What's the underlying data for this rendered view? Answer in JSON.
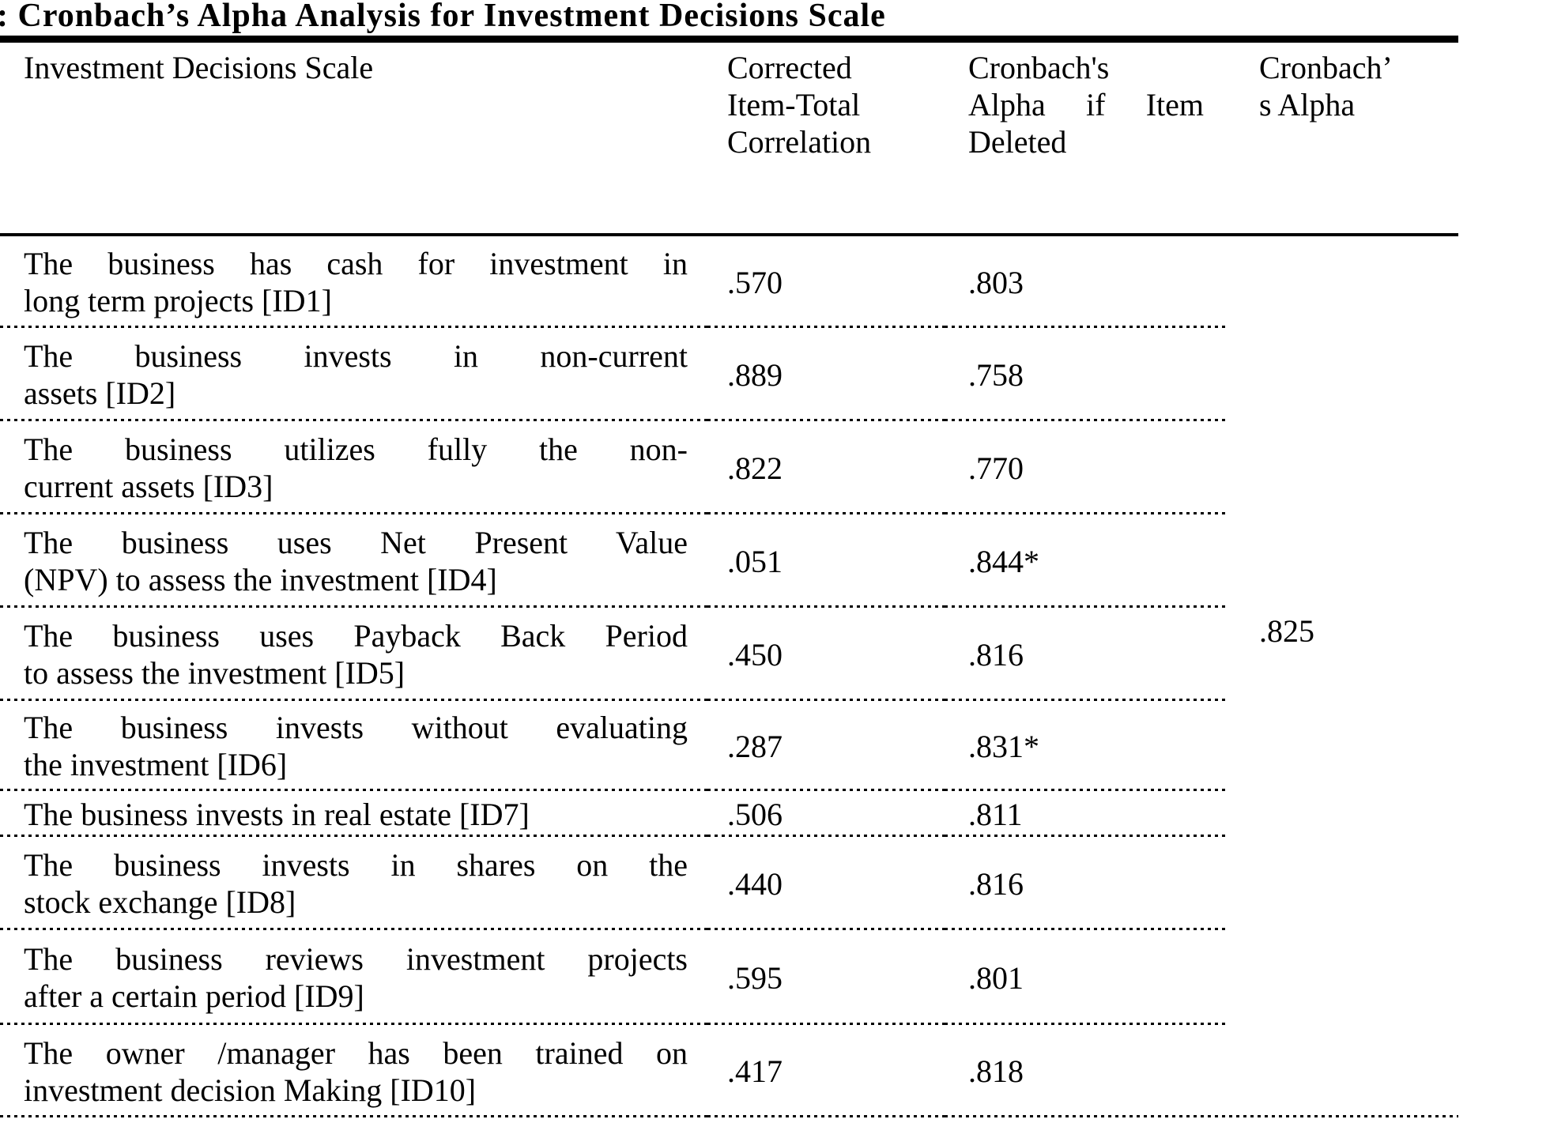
{
  "title": ": Cronbach’s Alpha Analysis for Investment Decisions Scale",
  "colors": {
    "text": "#000000",
    "background": "#ffffff",
    "rule": "#000000"
  },
  "table": {
    "headers": {
      "scale": "Investment Decisions Scale",
      "citc_lines": [
        "Corrected",
        "Item-Total",
        "Correlation"
      ],
      "aiid_lines": [
        "Cronbach's",
        "Alpha if Item",
        "Deleted"
      ],
      "alpha_lines": [
        "Cronbach’",
        "s Alpha"
      ]
    },
    "rows": [
      {
        "scale_lines": [
          "The business has cash for investment in",
          "long term projects [ID1]"
        ],
        "corrected_item_total_correlation": ".570",
        "alpha_if_item_deleted": ".803"
      },
      {
        "scale_lines": [
          "The business invests in non-current",
          "assets [ID2]"
        ],
        "corrected_item_total_correlation": ".889",
        "alpha_if_item_deleted": ".758"
      },
      {
        "scale_lines": [
          "The business utilizes fully the non-",
          "current assets [ID3]"
        ],
        "corrected_item_total_correlation": ".822",
        "alpha_if_item_deleted": ".770"
      },
      {
        "scale_lines": [
          "The business uses Net Present Value",
          "(NPV) to assess the investment [ID4]"
        ],
        "corrected_item_total_correlation": ".051",
        "alpha_if_item_deleted": ".844*"
      },
      {
        "scale_lines": [
          "The business uses Payback Back Period",
          "to assess the investment [ID5]"
        ],
        "corrected_item_total_correlation": ".450",
        "alpha_if_item_deleted": ".816"
      },
      {
        "scale_lines": [
          "The business invests without evaluating",
          "the investment [ID6]"
        ],
        "corrected_item_total_correlation": ".287",
        "alpha_if_item_deleted": ".831*"
      },
      {
        "scale_lines": [
          "The business invests in real estate [ID7]"
        ],
        "corrected_item_total_correlation": ".506",
        "alpha_if_item_deleted": ".811"
      },
      {
        "scale_lines": [
          "The business invests in shares on the",
          "stock exchange [ID8]"
        ],
        "corrected_item_total_correlation": ".440",
        "alpha_if_item_deleted": ".816"
      },
      {
        "scale_lines": [
          "The business reviews investment projects",
          "after a certain period [ID9]"
        ],
        "corrected_item_total_correlation": ".595",
        "alpha_if_item_deleted": ".801"
      },
      {
        "scale_lines": [
          "The owner /manager has been trained on",
          "investment decision Making [ID10]"
        ],
        "corrected_item_total_correlation": ".417",
        "alpha_if_item_deleted": ".818"
      }
    ],
    "cronbachs_alpha_overall": ".825"
  }
}
